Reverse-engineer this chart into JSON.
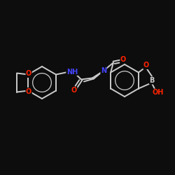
{
  "bg_color": "#0d0d0d",
  "bond_color": "#cccccc",
  "atom_colors": {
    "O": "#ff2200",
    "N": "#4444ff",
    "B": "#cccccc"
  },
  "bond_width": 1.4,
  "font_size": 7.0,
  "fig_size": [
    2.5,
    2.5
  ],
  "dpi": 100
}
